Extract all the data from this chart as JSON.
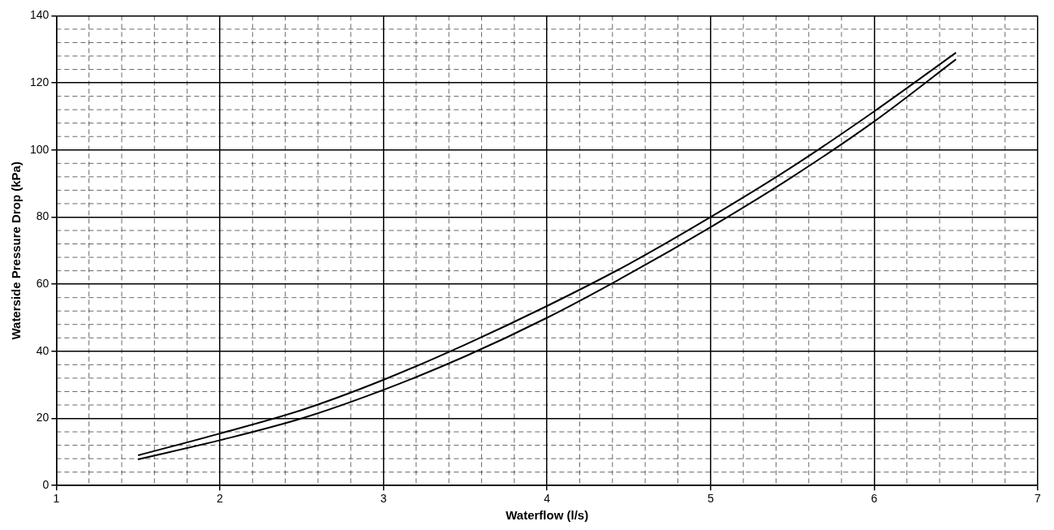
{
  "chart_data": {
    "type": "line",
    "xlabel": "Waterflow (l/s)",
    "ylabel": "Waterside Pressure Drop (kPa)",
    "xlim": [
      1,
      7
    ],
    "xticks": [
      1,
      2,
      3,
      4,
      5,
      6,
      7
    ],
    "ylim": [
      0,
      140
    ],
    "yticks": [
      0,
      20,
      40,
      60,
      80,
      100,
      120,
      140
    ],
    "grid": true,
    "marker": "none",
    "line_style": "solid",
    "series": [
      {
        "color": "#000000",
        "x": [
          1.5,
          2,
          2.5,
          3,
          3.5,
          4,
          4.5,
          5,
          5.5,
          6,
          6.5
        ],
        "values": [
          9,
          15.5,
          22.5,
          31.5,
          42,
          53.5,
          66,
          80,
          95,
          111.5,
          129
        ]
      },
      {
        "color": "#000000",
        "x": [
          1.5,
          2,
          2.5,
          3,
          3.5,
          4,
          4.5,
          5,
          5.5,
          6,
          6.5
        ],
        "values": [
          7.8,
          13.5,
          20,
          28.5,
          38.5,
          50,
          63,
          77,
          92,
          108.5,
          127
        ]
      }
    ]
  }
}
